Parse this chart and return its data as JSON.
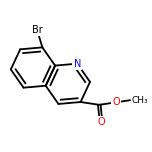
{
  "background_color": "#ffffff",
  "bond_color": "#000000",
  "atom_colors": {
    "N": "#0000ff",
    "O": "#ff0000",
    "Br": "#000000",
    "C": "#000000"
  },
  "bond_width": 1.3,
  "font_size_atom": 7.0
}
